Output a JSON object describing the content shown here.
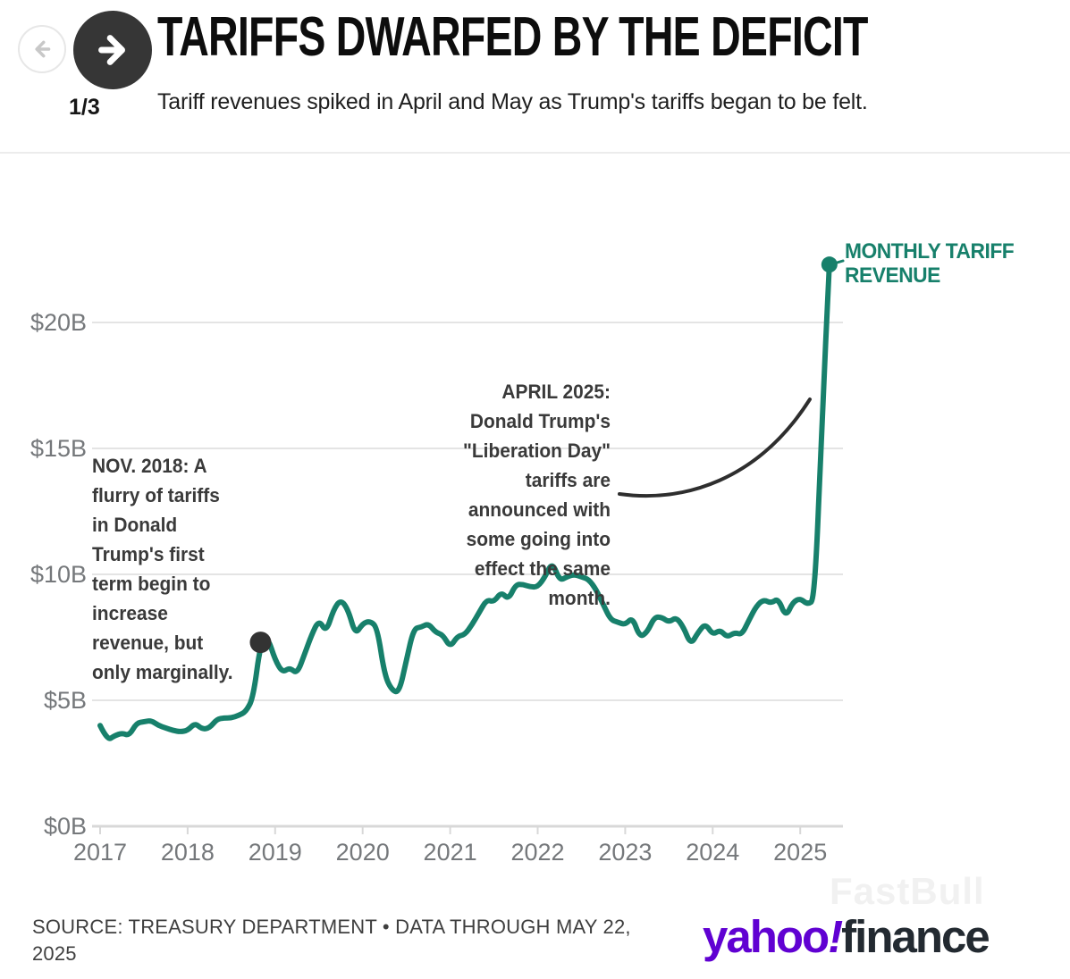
{
  "colors": {
    "accent": "#17806B",
    "annotation_ink": "#3A3A3A",
    "axis_label": "#75787B",
    "grid": "#E4E4E4",
    "yahoo_purple": "#6001D2",
    "finance_ink": "#232A31",
    "marker_black": "#333333"
  },
  "header": {
    "title": "TARIFFS DWARFED BY THE DEFICIT",
    "subtitle": "Tariff revenues spiked in April and May as Trump's tariffs began to be felt.",
    "page_indicator": "1/3",
    "prev_icon": "left-arrow",
    "next_icon": "right-arrow"
  },
  "chart_data": {
    "type": "line",
    "title": "Monthly tariff revenue",
    "unit": "USD billions per month",
    "frequency": "monthly",
    "start": "2017-01",
    "end": "2025-05",
    "values": [
      4.0,
      3.4,
      3.6,
      3.7,
      3.6,
      4.1,
      4.15,
      4.2,
      4.0,
      3.9,
      3.8,
      3.75,
      3.8,
      4.1,
      3.85,
      3.9,
      4.25,
      4.3,
      4.3,
      4.4,
      4.55,
      5.1,
      7.3,
      7.5,
      6.6,
      6.1,
      6.3,
      6.05,
      6.8,
      7.6,
      8.2,
      7.7,
      8.6,
      9.0,
      8.6,
      7.6,
      8.05,
      8.15,
      7.9,
      6.0,
      5.4,
      5.3,
      6.6,
      7.85,
      7.9,
      8.05,
      7.7,
      7.6,
      7.1,
      7.55,
      7.6,
      8.0,
      8.5,
      9.0,
      8.9,
      9.3,
      9.0,
      9.6,
      9.6,
      9.5,
      9.5,
      9.9,
      10.5,
      9.75,
      9.9,
      10.0,
      9.9,
      9.8,
      9.4,
      8.8,
      8.2,
      8.1,
      8.0,
      8.3,
      7.5,
      7.7,
      8.3,
      8.3,
      8.1,
      8.3,
      7.9,
      7.2,
      7.7,
      8.05,
      7.6,
      7.8,
      7.5,
      7.7,
      7.6,
      8.2,
      8.75,
      9.0,
      8.85,
      9.05,
      8.3,
      8.9,
      9.05,
      8.8,
      9.0,
      16.3,
      22.3
    ],
    "ylim": [
      0,
      22.5
    ],
    "grid": true,
    "y_ticks": [
      {
        "value": 0,
        "label": "$0B"
      },
      {
        "value": 5,
        "label": "$5B"
      },
      {
        "value": 10,
        "label": "$10B"
      },
      {
        "value": 15,
        "label": "$15B"
      },
      {
        "value": 20,
        "label": "$20B"
      }
    ],
    "x_ticks": [
      {
        "value": 2017,
        "label": "2017"
      },
      {
        "value": 2018,
        "label": "2018"
      },
      {
        "value": 2019,
        "label": "2019"
      },
      {
        "value": 2020,
        "label": "2020"
      },
      {
        "value": 2021,
        "label": "2021"
      },
      {
        "value": 2022,
        "label": "2022"
      },
      {
        "value": 2023,
        "label": "2023"
      },
      {
        "value": 2024,
        "label": "2024"
      },
      {
        "value": 2025,
        "label": "2025"
      }
    ],
    "line_color": "#17806B",
    "end_label": "MONTHLY TARIFF\nREVENUE",
    "markers": [
      {
        "name": "nov-2018-point",
        "date": "2018-11",
        "value": 7.3,
        "color": "#333333",
        "radius": 12
      },
      {
        "name": "may-2025-point",
        "date": "2025-05",
        "value": 22.3,
        "color": "#17806B",
        "radius": 9
      }
    ],
    "annotations": [
      {
        "name": "nov-2018-annotation",
        "text": "NOV. 2018: A\nflurry of tariffs\nin Donald\nTrump's first\nterm begin to\nincrease\nrevenue, but\nonly marginally."
      },
      {
        "name": "april-2025-annotation",
        "text": "APRIL 2025:\nDonald Trump's\n\"Liberation Day\"\ntariffs are\nannounced with\nsome going into\neffect the same\nmonth."
      }
    ]
  },
  "footer": {
    "source": "SOURCE: TREASURY DEPARTMENT • DATA THROUGH MAY 22, 2025",
    "watermark": "FastBull",
    "logo": {
      "yahoo": "yahoo",
      "bang": "!",
      "finance": "finance"
    }
  }
}
